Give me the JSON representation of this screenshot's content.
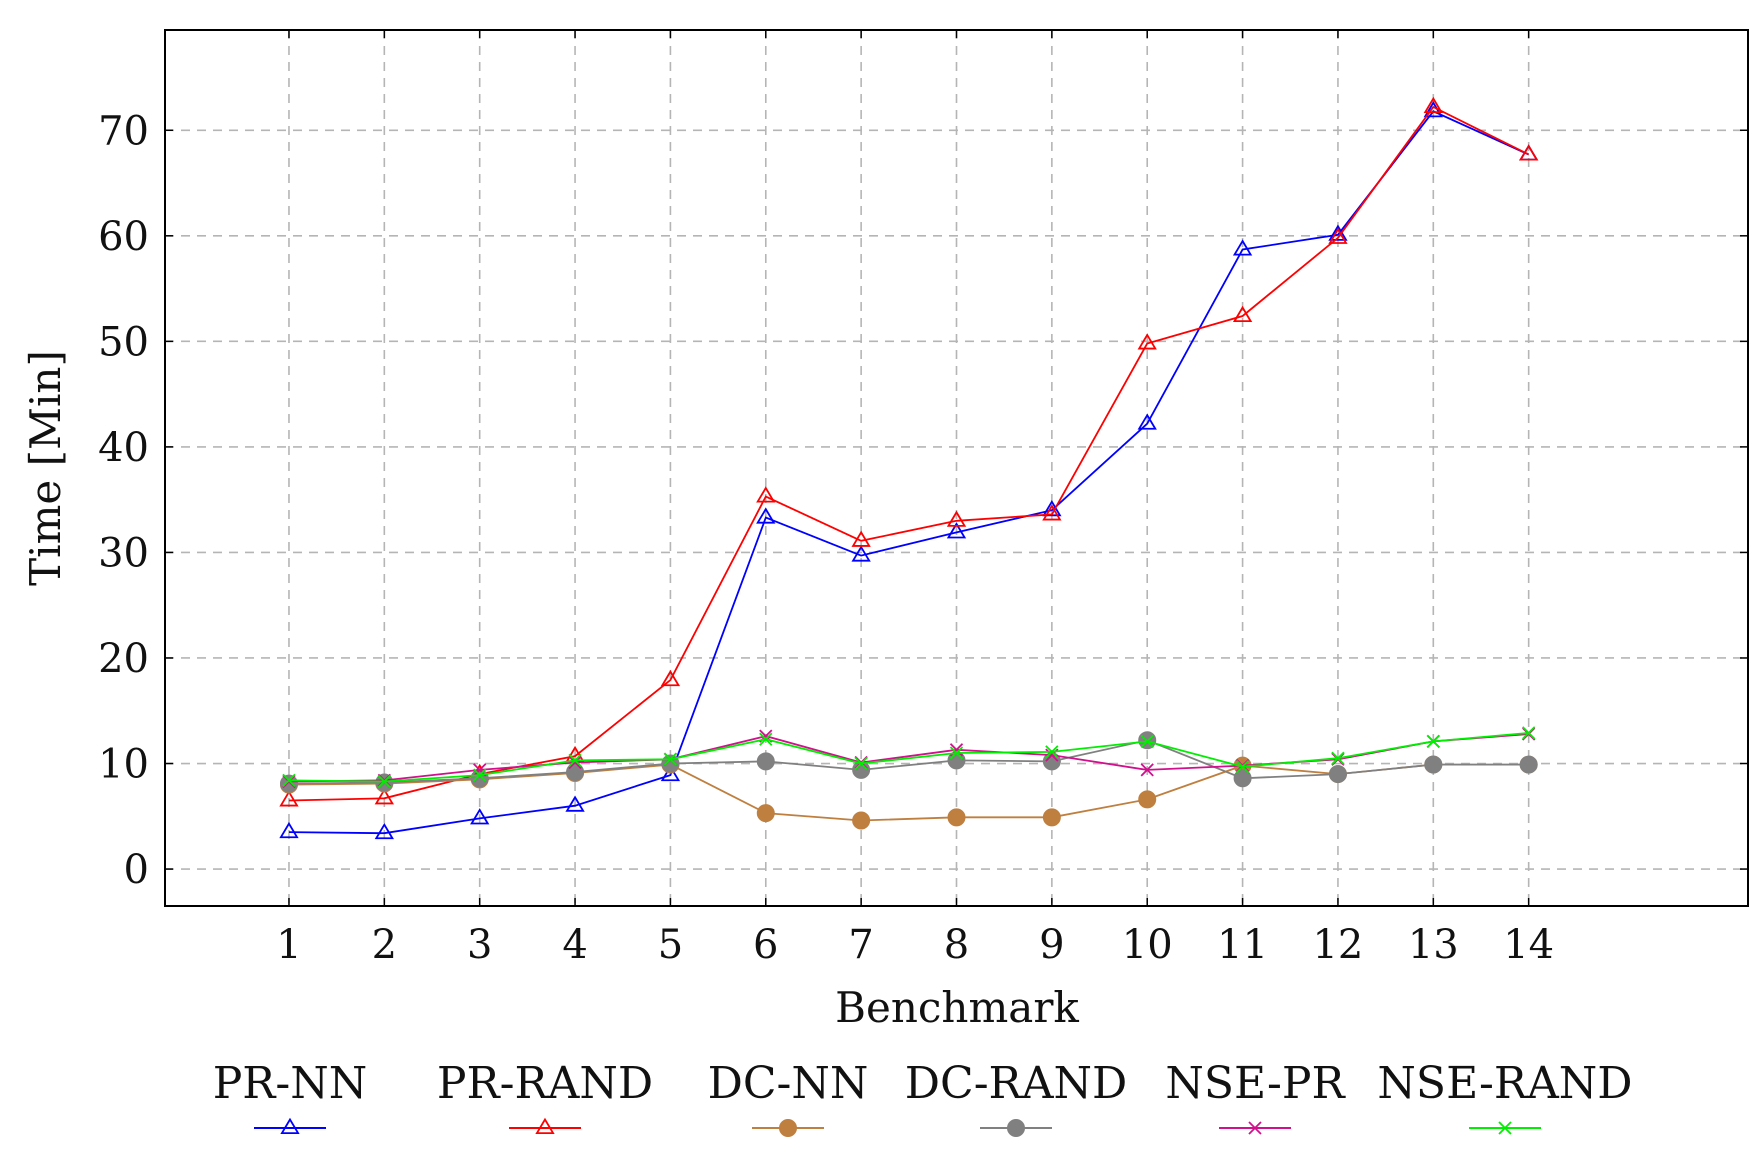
{
  "chart_data": {
    "type": "line",
    "title": "",
    "xlabel": "Benchmark",
    "ylabel": "Time [Min]",
    "x": [
      1,
      2,
      3,
      4,
      5,
      6,
      7,
      8,
      9,
      10,
      11,
      12,
      13,
      14
    ],
    "xlim": [
      -0.3,
      16.3
    ],
    "ylim": [
      -3.5,
      79.5
    ],
    "yticks": [
      0,
      10,
      20,
      30,
      40,
      50,
      60,
      70
    ],
    "grid": true,
    "legend_position": "bottom",
    "series": [
      {
        "name": "PR-NN",
        "color": "#0000ff",
        "marker": "triangle",
        "values": [
          3.5,
          3.4,
          4.8,
          6.0,
          8.9,
          33.3,
          29.7,
          31.9,
          34.0,
          42.2,
          58.7,
          60.1,
          71.8,
          67.7
        ]
      },
      {
        "name": "PR-RAND",
        "color": "#ff0000",
        "marker": "triangle",
        "values": [
          6.5,
          6.7,
          9.0,
          10.7,
          17.9,
          35.3,
          31.1,
          33.0,
          33.6,
          49.8,
          52.4,
          59.8,
          72.2,
          67.7
        ]
      },
      {
        "name": "DC-NN",
        "color": "#bf7f3f",
        "marker": "circle",
        "values": [
          8.0,
          8.1,
          8.5,
          9.1,
          9.9,
          5.3,
          4.6,
          4.9,
          4.9,
          6.6,
          9.8,
          9.0,
          9.9,
          9.9
        ]
      },
      {
        "name": "DC-RAND",
        "color": "#808080",
        "marker": "circle",
        "values": [
          8.1,
          8.2,
          8.6,
          9.2,
          10.0,
          10.2,
          9.4,
          10.3,
          10.2,
          12.2,
          8.6,
          9.0,
          9.9,
          9.9
        ]
      },
      {
        "name": "NSE-PR",
        "color": "#d1108d",
        "marker": "cross",
        "values": [
          8.3,
          8.4,
          9.4,
          10.1,
          10.4,
          12.6,
          10.1,
          11.3,
          10.8,
          9.4,
          9.8,
          10.4,
          12.1,
          12.8
        ]
      },
      {
        "name": "NSE-RAND",
        "color": "#00ee00",
        "marker": "cross",
        "values": [
          8.4,
          8.3,
          8.9,
          10.3,
          10.4,
          12.3,
          10.0,
          11.0,
          11.1,
          12.1,
          9.7,
          10.5,
          12.1,
          12.9
        ]
      }
    ]
  }
}
